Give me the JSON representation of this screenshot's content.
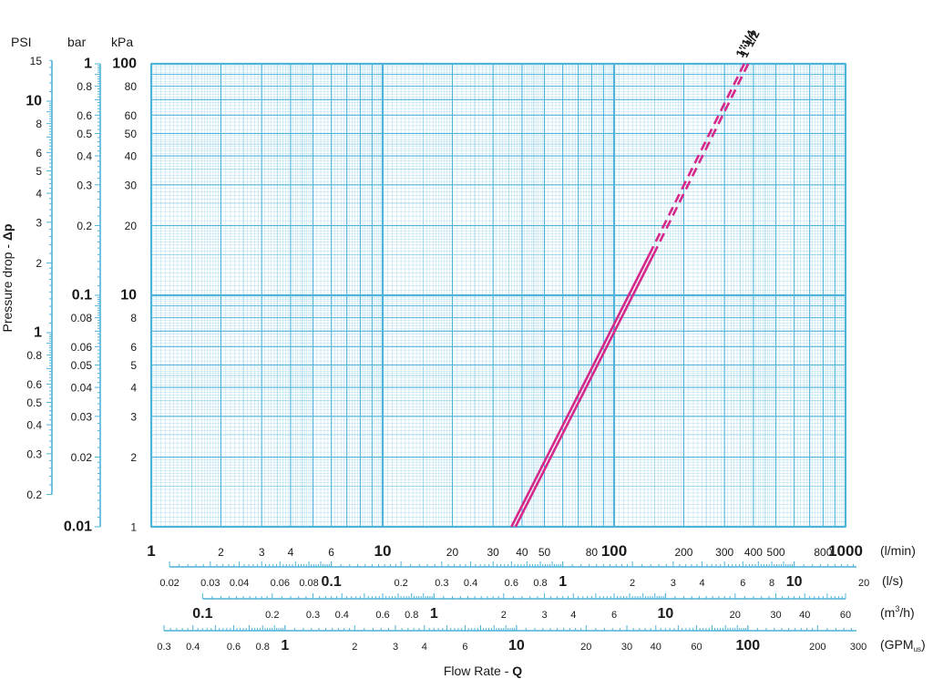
{
  "chart_data": {
    "type": "line",
    "title": "",
    "ylabel_text": "Pressure drop - ",
    "ylabel_bold": "Δp",
    "xlabel_text": "Flow Rate - ",
    "xlabel_bold": "Q",
    "x_scale": "log",
    "y_scale": "log",
    "xlim": [
      1,
      1000
    ],
    "ylim": [
      1,
      100
    ],
    "grid": true,
    "grid_color": "#4fb3d9",
    "line_color": "#d6288b",
    "units": {
      "kpa": "kPa",
      "bar": "bar",
      "psi": "PSI",
      "lmin": "(l/min)",
      "ls": "(l/s)",
      "m3h_base": "(m",
      "m3h_sup": "3",
      "m3h_end": "/h)",
      "gpm_base": "(GPM",
      "gpm_sub": "us",
      "gpm_end": ")"
    },
    "y_ticks_kpa": [
      {
        "v": 100,
        "label": "100",
        "major": true
      },
      {
        "v": 80,
        "label": "80"
      },
      {
        "v": 60,
        "label": "60"
      },
      {
        "v": 50,
        "label": "50"
      },
      {
        "v": 40,
        "label": "40"
      },
      {
        "v": 30,
        "label": "30"
      },
      {
        "v": 20,
        "label": "20"
      },
      {
        "v": 10,
        "label": "10",
        "major": true
      },
      {
        "v": 8,
        "label": "8"
      },
      {
        "v": 6,
        "label": "6"
      },
      {
        "v": 5,
        "label": "5"
      },
      {
        "v": 4,
        "label": "4"
      },
      {
        "v": 3,
        "label": "3"
      },
      {
        "v": 2,
        "label": "2"
      },
      {
        "v": 1,
        "label": "1"
      }
    ],
    "y_ticks_bar": [
      {
        "v": 1,
        "label": "1",
        "major": true
      },
      {
        "v": 0.8,
        "label": "0.8"
      },
      {
        "v": 0.6,
        "label": "0.6"
      },
      {
        "v": 0.5,
        "label": "0.5"
      },
      {
        "v": 0.4,
        "label": "0.4"
      },
      {
        "v": 0.3,
        "label": "0.3"
      },
      {
        "v": 0.2,
        "label": "0.2"
      },
      {
        "v": 0.1,
        "label": "0.1",
        "major": true
      },
      {
        "v": 0.08,
        "label": "0.08"
      },
      {
        "v": 0.06,
        "label": "0.06"
      },
      {
        "v": 0.05,
        "label": "0.05"
      },
      {
        "v": 0.04,
        "label": "0.04"
      },
      {
        "v": 0.03,
        "label": "0.03"
      },
      {
        "v": 0.02,
        "label": "0.02"
      },
      {
        "v": 0.01,
        "label": "0.01",
        "major": true
      }
    ],
    "y_ticks_psi": [
      {
        "v": 15,
        "label": "15"
      },
      {
        "v": 10,
        "label": "10",
        "major": true
      },
      {
        "v": 8,
        "label": "8"
      },
      {
        "v": 6,
        "label": "6"
      },
      {
        "v": 5,
        "label": "5"
      },
      {
        "v": 4,
        "label": "4"
      },
      {
        "v": 3,
        "label": "3"
      },
      {
        "v": 2,
        "label": "2"
      },
      {
        "v": 1,
        "label": "1",
        "major": true
      },
      {
        "v": 0.8,
        "label": "0.8"
      },
      {
        "v": 0.6,
        "label": "0.6"
      },
      {
        "v": 0.5,
        "label": "0.5"
      },
      {
        "v": 0.4,
        "label": "0.4"
      },
      {
        "v": 0.3,
        "label": "0.3"
      },
      {
        "v": 0.2,
        "label": "0.2"
      }
    ],
    "x_ticks_lmin": [
      {
        "v": 1,
        "label": "1",
        "major": true
      },
      {
        "v": 2,
        "label": "2"
      },
      {
        "v": 3,
        "label": "3"
      },
      {
        "v": 4,
        "label": "4"
      },
      {
        "v": 6,
        "label": "6"
      },
      {
        "v": 10,
        "label": "10",
        "major": true
      },
      {
        "v": 20,
        "label": "20"
      },
      {
        "v": 30,
        "label": "30"
      },
      {
        "v": 40,
        "label": "40"
      },
      {
        "v": 50,
        "label": "50"
      },
      {
        "v": 80,
        "label": "80"
      },
      {
        "v": 100,
        "label": "100",
        "major": true
      },
      {
        "v": 200,
        "label": "200"
      },
      {
        "v": 300,
        "label": "300"
      },
      {
        "v": 400,
        "label": "400"
      },
      {
        "v": 500,
        "label": "500"
      },
      {
        "v": 800,
        "label": "800"
      },
      {
        "v": 1000,
        "label": "1000",
        "major": true
      }
    ],
    "x_ticks_ls": [
      {
        "v": 0.02,
        "label": "0.02"
      },
      {
        "v": 0.03,
        "label": "0.03"
      },
      {
        "v": 0.04,
        "label": "0.04"
      },
      {
        "v": 0.06,
        "label": "0.06"
      },
      {
        "v": 0.08,
        "label": "0.08"
      },
      {
        "v": 0.1,
        "label": "0.1",
        "major": true
      },
      {
        "v": 0.2,
        "label": "0.2"
      },
      {
        "v": 0.3,
        "label": "0.3"
      },
      {
        "v": 0.4,
        "label": "0.4"
      },
      {
        "v": 0.6,
        "label": "0.6"
      },
      {
        "v": 0.8,
        "label": "0.8"
      },
      {
        "v": 1,
        "label": "1",
        "major": true
      },
      {
        "v": 2,
        "label": "2"
      },
      {
        "v": 3,
        "label": "3"
      },
      {
        "v": 4,
        "label": "4"
      },
      {
        "v": 6,
        "label": "6"
      },
      {
        "v": 8,
        "label": "8"
      },
      {
        "v": 10,
        "label": "10",
        "major": true
      },
      {
        "v": 20,
        "label": "20"
      }
    ],
    "x_ticks_m3h": [
      {
        "v": 0.1,
        "label": "0.1",
        "major": true
      },
      {
        "v": 0.2,
        "label": "0.2"
      },
      {
        "v": 0.3,
        "label": "0.3"
      },
      {
        "v": 0.4,
        "label": "0.4"
      },
      {
        "v": 0.6,
        "label": "0.6"
      },
      {
        "v": 0.8,
        "label": "0.8"
      },
      {
        "v": 1,
        "label": "1",
        "major": true
      },
      {
        "v": 2,
        "label": "2"
      },
      {
        "v": 3,
        "label": "3"
      },
      {
        "v": 4,
        "label": "4"
      },
      {
        "v": 6,
        "label": "6"
      },
      {
        "v": 10,
        "label": "10",
        "major": true
      },
      {
        "v": 20,
        "label": "20"
      },
      {
        "v": 30,
        "label": "30"
      },
      {
        "v": 40,
        "label": "40"
      },
      {
        "v": 60,
        "label": "60"
      }
    ],
    "x_ticks_gpm": [
      {
        "v": 0.3,
        "label": "0.3"
      },
      {
        "v": 0.4,
        "label": "0.4"
      },
      {
        "v": 0.6,
        "label": "0.6"
      },
      {
        "v": 0.8,
        "label": "0.8"
      },
      {
        "v": 1,
        "label": "1",
        "major": true
      },
      {
        "v": 2,
        "label": "2"
      },
      {
        "v": 3,
        "label": "3"
      },
      {
        "v": 4,
        "label": "4"
      },
      {
        "v": 6,
        "label": "6"
      },
      {
        "v": 10,
        "label": "10",
        "major": true
      },
      {
        "v": 20,
        "label": "20"
      },
      {
        "v": 30,
        "label": "30"
      },
      {
        "v": 40,
        "label": "40"
      },
      {
        "v": 60,
        "label": "60"
      },
      {
        "v": 100,
        "label": "100",
        "major": true
      },
      {
        "v": 200,
        "label": "200"
      },
      {
        "v": 300,
        "label": "300"
      }
    ],
    "series": [
      {
        "name": "1\"1/4",
        "solid": [
          [
            36,
            1
          ],
          [
            142,
            15
          ]
        ],
        "dashed": [
          [
            142,
            15
          ],
          [
            365,
            100
          ]
        ]
      },
      {
        "name": "1\"1/2",
        "solid": [
          [
            37.5,
            1
          ],
          [
            148,
            15
          ]
        ],
        "dashed": [
          [
            148,
            15
          ],
          [
            380,
            100
          ]
        ]
      }
    ]
  }
}
